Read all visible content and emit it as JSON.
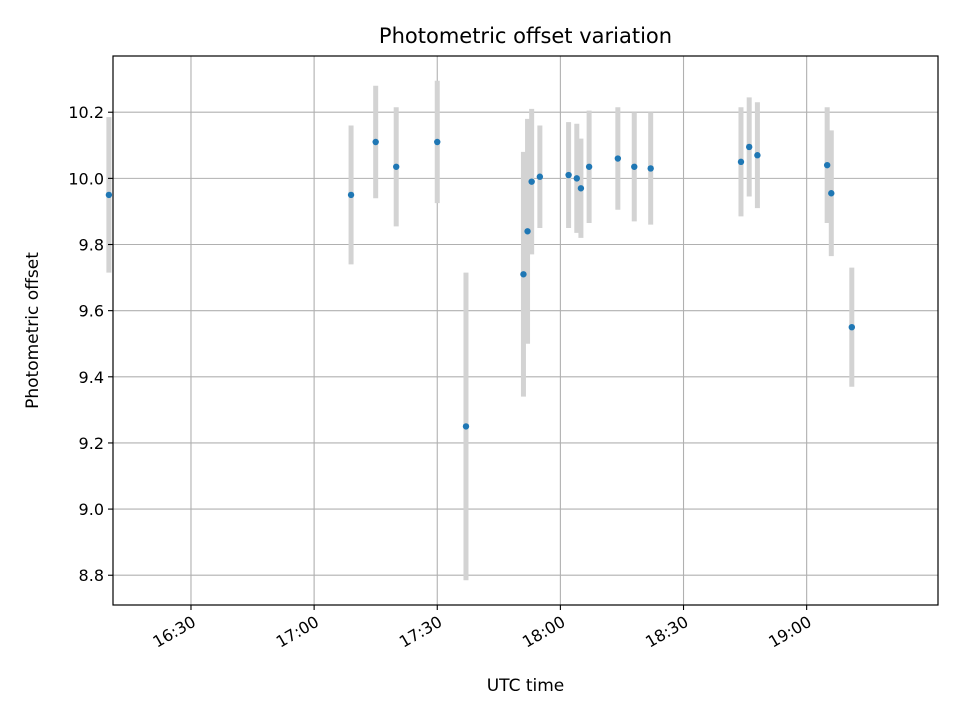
{
  "chart_data": {
    "type": "scatter",
    "title": "Photometric offset variation",
    "xlabel": "UTC time",
    "ylabel": "Photometric offset",
    "x_ticks": [
      "16:30",
      "17:00",
      "17:30",
      "18:00",
      "18:30",
      "19:00"
    ],
    "y_ticks": [
      "8.8",
      "9.0",
      "9.2",
      "9.4",
      "9.6",
      "9.8",
      "10.0",
      "10.2"
    ],
    "xlim": [
      "16:11",
      "19:32"
    ],
    "ylim": [
      8.71,
      10.37
    ],
    "grid": true,
    "colors": {
      "marker": "#1f77b4",
      "errorbar": "#d3d3d3",
      "grid": "#b0b0b0"
    },
    "points": [
      {
        "x": "16:10",
        "y": 9.95,
        "yerr": 0.235
      },
      {
        "x": "17:09",
        "y": 9.95,
        "yerr": 0.21
      },
      {
        "x": "17:15",
        "y": 10.11,
        "yerr": 0.17
      },
      {
        "x": "17:20",
        "y": 10.035,
        "yerr": 0.18
      },
      {
        "x": "17:30",
        "y": 10.11,
        "yerr": 0.185
      },
      {
        "x": "17:37",
        "y": 9.25,
        "yerr": 0.465
      },
      {
        "x": "17:51",
        "y": 9.71,
        "yerr": 0.37
      },
      {
        "x": "17:52",
        "y": 9.84,
        "yerr": 0.34
      },
      {
        "x": "17:53",
        "y": 9.99,
        "yerr": 0.22
      },
      {
        "x": "17:55",
        "y": 10.005,
        "yerr": 0.155
      },
      {
        "x": "18:02",
        "y": 10.01,
        "yerr": 0.16
      },
      {
        "x": "18:04",
        "y": 10.0,
        "yerr": 0.165
      },
      {
        "x": "18:05",
        "y": 9.97,
        "yerr": 0.15
      },
      {
        "x": "18:07",
        "y": 10.035,
        "yerr": 0.17
      },
      {
        "x": "18:14",
        "y": 10.06,
        "yerr": 0.155
      },
      {
        "x": "18:18",
        "y": 10.035,
        "yerr": 0.165
      },
      {
        "x": "18:22",
        "y": 10.03,
        "yerr": 0.17
      },
      {
        "x": "18:44",
        "y": 10.05,
        "yerr": 0.165
      },
      {
        "x": "18:46",
        "y": 10.095,
        "yerr": 0.15
      },
      {
        "x": "18:48",
        "y": 10.07,
        "yerr": 0.16
      },
      {
        "x": "19:05",
        "y": 10.04,
        "yerr": 0.175
      },
      {
        "x": "19:06",
        "y": 9.955,
        "yerr": 0.19
      },
      {
        "x": "19:11",
        "y": 9.55,
        "yerr": 0.18
      }
    ]
  }
}
